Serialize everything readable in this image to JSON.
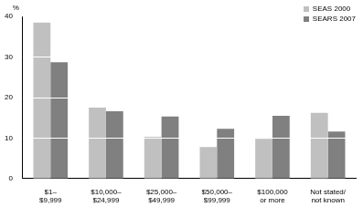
{
  "chart_data": {
    "type": "bar",
    "y_label": "%",
    "categories": [
      "$1–\n$9,999",
      "$10,000–\n$24,999",
      "$25,000–\n$49,999",
      "$50,000–\n$99,999",
      "$100,000\nor more",
      "Not stated/\nnot known"
    ],
    "series": [
      {
        "name": "SEAS 2000",
        "color": "#c0c0c0",
        "values": [
          38.5,
          17.5,
          10.3,
          7.8,
          9.8,
          16.2
        ]
      },
      {
        "name": "SEARS 2007",
        "color": "#808080",
        "values": [
          28.7,
          16.6,
          15.3,
          12.3,
          15.5,
          11.6
        ]
      }
    ],
    "ylim": [
      0,
      40
    ],
    "yticks": [
      0,
      10,
      20,
      30,
      40
    ],
    "grid": true,
    "legend": "upper right"
  }
}
